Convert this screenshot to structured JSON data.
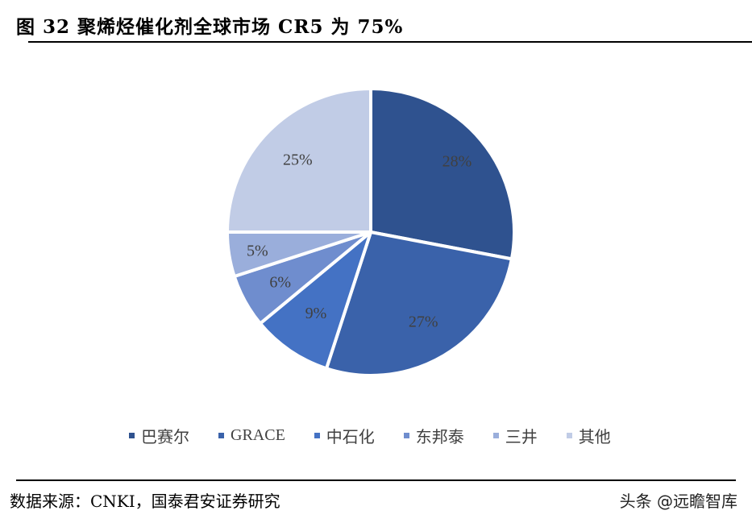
{
  "header": {
    "title": "图 32 聚烯烃催化剂全球市场 CR5 为 75%"
  },
  "footer": {
    "source": "数据来源：CNKI，国泰君安证券研究",
    "watermark": "头条 @远瞻智库"
  },
  "chart_data": {
    "type": "pie",
    "title": "图 32 聚烯烃催化剂全球市场 CR5 为 75%",
    "categories": [
      "巴赛尔",
      "GRACE",
      "中石化",
      "东邦泰",
      "三井",
      "其他"
    ],
    "values": [
      28,
      27,
      9,
      6,
      5,
      25
    ],
    "labels": [
      "28%",
      "27%",
      "9%",
      "6%",
      "5%",
      "25%"
    ],
    "colors": [
      "#2F528F",
      "#3A62AA",
      "#4472C4",
      "#6F8DCE",
      "#9AAEDB",
      "#C1CCE6"
    ],
    "start_angle": "12 o'clock, clockwise",
    "legend_position": "bottom",
    "unit": "%"
  }
}
